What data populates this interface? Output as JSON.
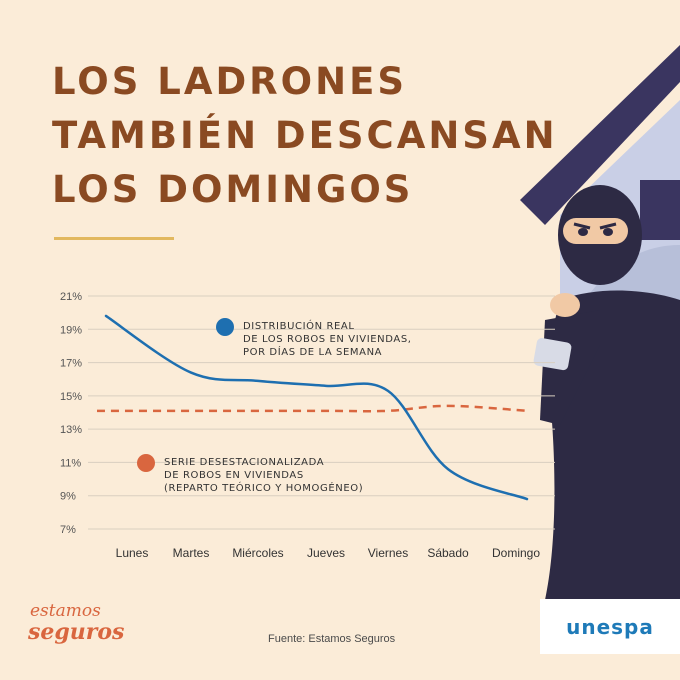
{
  "title_lines": [
    "LOS LADRONES",
    "TAMBIÉN DESCANSAN",
    "LOS DOMINGOS"
  ],
  "source": "Fuente: Estamos Seguros",
  "logos": {
    "estamos_line1": "estamos",
    "estamos_line2": "seguros",
    "unespa": "unespa"
  },
  "colors": {
    "real": "#1e6fb0",
    "deseasonal": "#d9663f",
    "title": "#8a4a22",
    "background": "#fbecd8",
    "accent": "#e2b85f"
  },
  "chart_data": {
    "type": "line",
    "categories": [
      "Lunes",
      "Martes",
      "Miércoles",
      "Jueves",
      "Viernes",
      "Sábado",
      "Domingo"
    ],
    "y_ticks": [
      "21%",
      "19%",
      "17%",
      "15%",
      "13%",
      "11%",
      "9%",
      "7%"
    ],
    "ylim": [
      7,
      21
    ],
    "grid": true,
    "series": [
      {
        "name": "DISTRIBUCIÓN REAL DE LOS ROBOS EN VIVIENDAS, POR DÍAS DE LA SEMANA",
        "label_lines": [
          "DISTRIBUCIÓN REAL",
          "DE LOS ROBOS EN VIVIENDAS,",
          "POR DÍAS DE LA SEMANA"
        ],
        "style": "solid",
        "values": [
          19.8,
          16.4,
          15.9,
          15.6,
          15.3,
          10.6,
          8.8
        ]
      },
      {
        "name": "SERIE DESESTACIONALIZADA DE ROBOS EN VIVIENDAS (REPARTO TEÓRICO Y HOMOGÉNEO)",
        "label_lines": [
          "SERIE DESESTACIONALIZADA",
          "DE ROBOS EN VIVIENDAS",
          "(REPARTO TEÓRICO Y HOMOGÉNEO)"
        ],
        "style": "dashed",
        "values": [
          14.1,
          14.1,
          14.1,
          14.1,
          14.1,
          14.4,
          14.1
        ]
      }
    ]
  }
}
